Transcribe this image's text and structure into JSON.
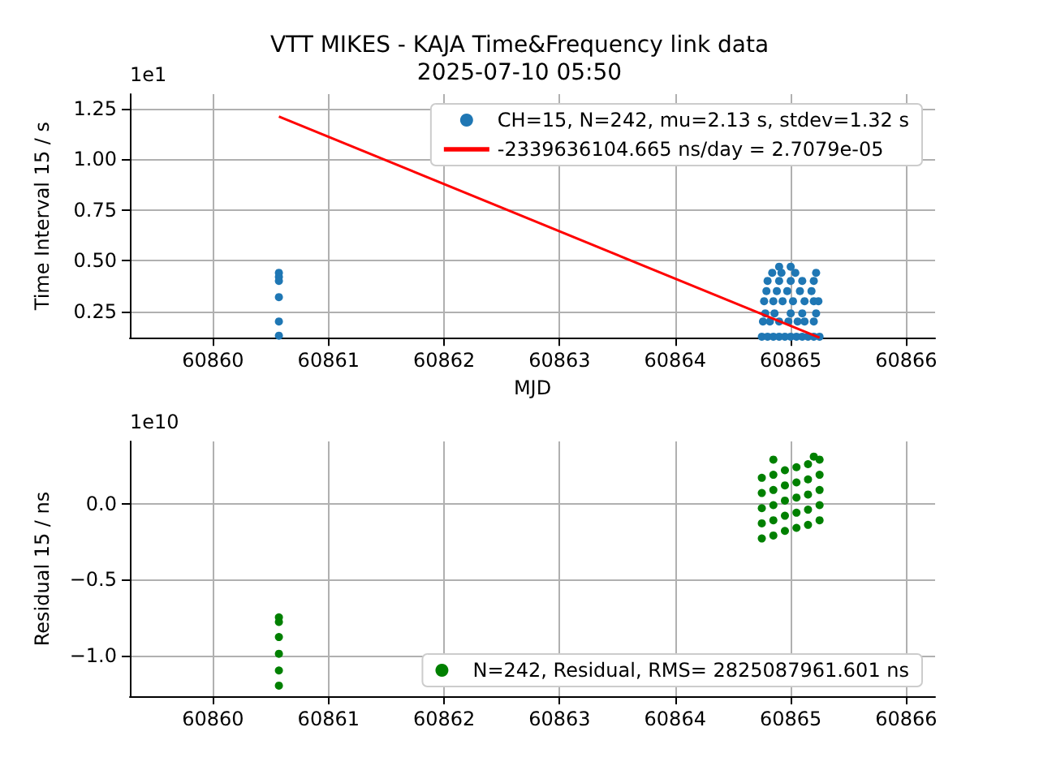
{
  "chart_data": [
    {
      "type": "scatter",
      "title": "VTT MIKES - KAJA Time&Frequency link data",
      "subtitle": "2025-07-10 05:50",
      "xlabel": "MJD",
      "ylabel": "Time Interval 15 / s",
      "annotations": [
        "1e1"
      ],
      "marker": "circle",
      "grid": true,
      "legend": "top right",
      "xlim": [
        60859.28,
        60866.25
      ],
      "xticks": [
        60860,
        60861,
        60862,
        60863,
        60864,
        60865,
        60866
      ],
      "ylim": [
        0.12,
        1.32
      ],
      "yticks": [
        0.25,
        {
          "value": 0.5,
          "label": "0.50"
        },
        0.75,
        {
          "value": 1,
          "label": "1.00"
        },
        1.25
      ],
      "series": [
        {
          "name": "CH=15, N=242, mu=2.13 s, stdev=1.32 s",
          "color": "#1f77b4",
          "x": [
            60860.57,
            60860.57,
            60860.57,
            60860.57,
            60860.57,
            60860.57,
            60864.75,
            60864.8,
            60864.85,
            60864.9,
            60864.95,
            60865.0,
            60865.05,
            60865.1,
            60865.15,
            60865.2,
            60865.25,
            60864.76,
            60864.82,
            60864.9,
            60864.98,
            60865.06,
            60865.12,
            60865.2,
            60864.78,
            60864.86,
            60865.0,
            60865.1,
            60865.22,
            60864.77,
            60864.85,
            60864.93,
            60865.02,
            60865.12,
            60865.2,
            60865.24,
            60864.79,
            60864.88,
            60864.97,
            60865.08,
            60865.18,
            60864.8,
            60864.9,
            60865.0,
            60865.1,
            60865.2,
            60864.84,
            60864.92,
            60865.04,
            60865.22,
            60864.9,
            60865.0
          ],
          "values": [
            0.44,
            0.42,
            0.4,
            0.32,
            0.2,
            0.13,
            0.125,
            0.125,
            0.125,
            0.125,
            0.125,
            0.125,
            0.125,
            0.125,
            0.125,
            0.125,
            0.125,
            0.2,
            0.2,
            0.2,
            0.2,
            0.2,
            0.2,
            0.2,
            0.24,
            0.24,
            0.24,
            0.24,
            0.24,
            0.3,
            0.3,
            0.3,
            0.3,
            0.3,
            0.3,
            0.3,
            0.35,
            0.35,
            0.35,
            0.35,
            0.35,
            0.4,
            0.4,
            0.4,
            0.4,
            0.4,
            0.44,
            0.44,
            0.44,
            0.44,
            0.47,
            0.47
          ]
        },
        {
          "type": "line",
          "name": "-2339636104.665 ns/day = 2.7079e-05",
          "color": "#ff0000",
          "marker": "none",
          "x": [
            60860.57,
            60865.25
          ],
          "values": [
            1.21,
            0.12
          ]
        }
      ]
    },
    {
      "type": "scatter",
      "ylabel": "Residual 15 / ns",
      "annotations": [
        "1e10"
      ],
      "marker": "circle",
      "grid": true,
      "legend": "bottom right",
      "xlim": [
        60859.28,
        60866.25
      ],
      "xticks": [
        60860,
        60861,
        60862,
        60863,
        60864,
        60865,
        60866
      ],
      "ylim": [
        -1.27,
        0.41
      ],
      "yticks": [
        {
          "value": -1,
          "label": "−1.0"
        },
        {
          "value": -0.5,
          "label": "−0.5"
        },
        {
          "value": 0,
          "label": "0.0"
        }
      ],
      "series": [
        {
          "name": "N=242, Residual, RMS= 2825087961.601 ns",
          "color": "#008000",
          "x": [
            60860.57,
            60860.57,
            60860.57,
            60860.57,
            60860.57,
            60860.57,
            60864.75,
            60864.85,
            60864.95,
            60865.05,
            60865.15,
            60865.25,
            60864.75,
            60864.85,
            60864.95,
            60865.05,
            60865.15,
            60865.25,
            60864.75,
            60864.85,
            60864.95,
            60865.05,
            60865.15,
            60865.25,
            60864.75,
            60864.85,
            60864.95,
            60865.05,
            60865.15,
            60865.25,
            60864.75,
            60864.85,
            60864.95,
            60865.05,
            60865.15,
            60865.25,
            60864.85,
            60865.2
          ],
          "values": [
            -0.75,
            -0.78,
            -0.88,
            -0.99,
            -1.1,
            -1.2,
            -0.23,
            -0.21,
            -0.18,
            -0.16,
            -0.14,
            -0.11,
            -0.13,
            -0.11,
            -0.08,
            -0.06,
            -0.04,
            -0.01,
            -0.03,
            -0.01,
            0.02,
            0.04,
            0.06,
            0.09,
            0.07,
            0.09,
            0.12,
            0.14,
            0.16,
            0.19,
            0.17,
            0.19,
            0.22,
            0.24,
            0.26,
            0.29,
            0.29,
            0.31
          ]
        }
      ]
    }
  ]
}
